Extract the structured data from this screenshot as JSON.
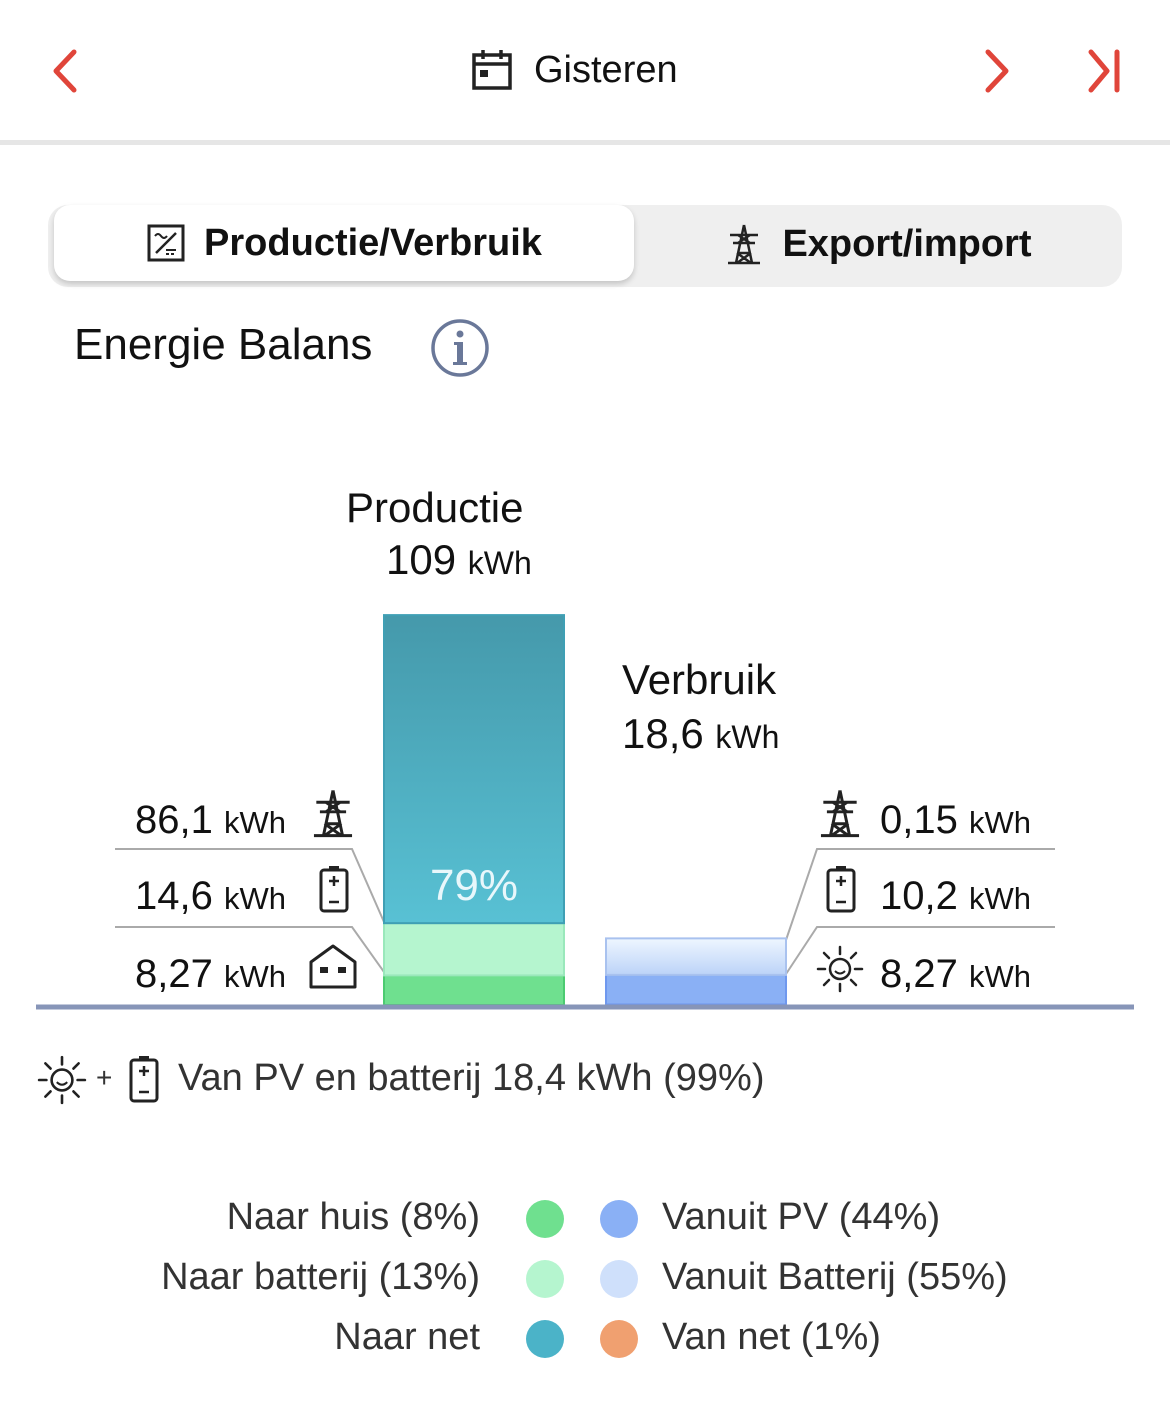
{
  "header": {
    "title": "Gisteren",
    "icons": {
      "prev": "chevron-left-icon",
      "next": "chevron-right-icon",
      "last": "skip-to-end-icon",
      "calendar": "calendar-icon"
    },
    "accent_color": "#e0453a"
  },
  "tabs": [
    {
      "label": "Productie/Verbruik",
      "icon": "inverter-icon",
      "active": true
    },
    {
      "label": "Export/import",
      "icon": "pylon-icon",
      "active": false
    }
  ],
  "section": {
    "title": "Energie Balans",
    "info_icon": "info-icon"
  },
  "production": {
    "title": "Productie",
    "value": "109",
    "unit": "kWh",
    "bar_percent_label": "79%",
    "rows": [
      {
        "value": "86,1",
        "unit": "kWh",
        "icon": "pylon-icon"
      },
      {
        "value": "14,6",
        "unit": "kWh",
        "icon": "battery-icon"
      },
      {
        "value": "8,27",
        "unit": "kWh",
        "icon": "house-icon"
      }
    ]
  },
  "consumption": {
    "title": "Verbruik",
    "value": "18,6",
    "unit": "kWh",
    "rows": [
      {
        "value": "0,15",
        "unit": "kWh",
        "icon": "pylon-icon"
      },
      {
        "value": "10,2",
        "unit": "kWh",
        "icon": "battery-icon"
      },
      {
        "value": "8,27",
        "unit": "kWh",
        "icon": "sun-icon"
      }
    ]
  },
  "chart_data": {
    "type": "bar",
    "stacked": true,
    "categories": [
      "Productie",
      "Verbruik"
    ],
    "series": [
      {
        "name": "Naar net",
        "values": [
          86.1,
          0
        ],
        "color": "#4bb3c8"
      },
      {
        "name": "Naar batterij",
        "values": [
          14.6,
          0
        ],
        "color": "#b5f5cf"
      },
      {
        "name": "Naar huis",
        "values": [
          8.27,
          0
        ],
        "color": "#6fe08f"
      },
      {
        "name": "Van net",
        "values": [
          0,
          0.15
        ],
        "color": "#f0a070"
      },
      {
        "name": "Vanuit Batterij",
        "values": [
          0,
          10.2
        ],
        "color": "#cfe0fb"
      },
      {
        "name": "Vanuit PV",
        "values": [
          0,
          8.27
        ],
        "color": "#8ab0f5"
      }
    ],
    "totals": [
      109,
      18.6
    ],
    "grid": false
  },
  "summary": {
    "text": "Van PV en batterij 18,4 kWh (99%)",
    "plus": "+"
  },
  "legend": {
    "left": [
      {
        "label": "Naar huis (8%)",
        "color": "#6fe08f"
      },
      {
        "label": "Naar batterij (13%)",
        "color": "#b5f5cf"
      },
      {
        "label": "Naar net",
        "color": "#4bb3c8"
      }
    ],
    "right": [
      {
        "label": "Vanuit PV (44%)",
        "color": "#8ab0f5"
      },
      {
        "label": "Vanuit Batterij (55%)",
        "color": "#cfe0fb"
      },
      {
        "label": "Van net (1%)",
        "color": "#f0a070"
      }
    ]
  }
}
